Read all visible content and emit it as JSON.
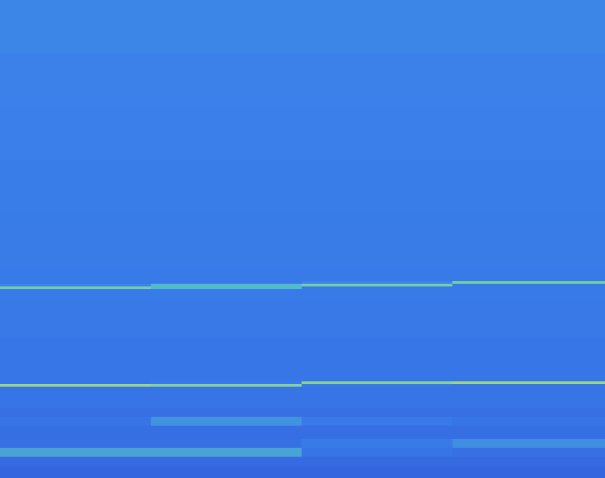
{
  "chart_data": {
    "type": "heatmap",
    "tick_labels": false,
    "x_bins": [
      0,
      170,
      340,
      510,
      682
    ],
    "y_bins": [
      0,
      60,
      120,
      180,
      240,
      300,
      317,
      320,
      323,
      326,
      340,
      380,
      420,
      430,
      433,
      436,
      460,
      470,
      480,
      495,
      505,
      515,
      525,
      539
    ],
    "xlim": [
      0,
      682
    ],
    "ylim": [
      0,
      539
    ],
    "zlim": [
      0,
      1
    ],
    "cells": [
      [
        0.36,
        0.36,
        0.36,
        0.36
      ],
      [
        0.34,
        0.34,
        0.34,
        0.34
      ],
      [
        0.33,
        0.33,
        0.33,
        0.33
      ],
      [
        0.32,
        0.32,
        0.32,
        0.32
      ],
      [
        0.31,
        0.31,
        0.31,
        0.31
      ],
      [
        0.3,
        0.3,
        0.3,
        0.3
      ],
      [
        0.3,
        0.3,
        0.35,
        0.75
      ],
      [
        0.35,
        0.6,
        0.75,
        0.3
      ],
      [
        0.75,
        0.6,
        0.3,
        0.3
      ],
      [
        0.3,
        0.3,
        0.3,
        0.3
      ],
      [
        0.29,
        0.29,
        0.29,
        0.29
      ],
      [
        0.28,
        0.28,
        0.28,
        0.28
      ],
      [
        0.28,
        0.28,
        0.28,
        0.28
      ],
      [
        0.28,
        0.3,
        0.8,
        0.85
      ],
      [
        0.85,
        0.8,
        0.3,
        0.28
      ],
      [
        0.27,
        0.27,
        0.27,
        0.27
      ],
      [
        0.25,
        0.25,
        0.25,
        0.25
      ],
      [
        0.27,
        0.42,
        0.3,
        0.27
      ],
      [
        0.24,
        0.24,
        0.24,
        0.24
      ],
      [
        0.25,
        0.25,
        0.3,
        0.4
      ],
      [
        0.5,
        0.5,
        0.27,
        0.25
      ],
      [
        0.22,
        0.22,
        0.22,
        0.22
      ],
      [
        0.2,
        0.2,
        0.2,
        0.2
      ]
    ]
  }
}
